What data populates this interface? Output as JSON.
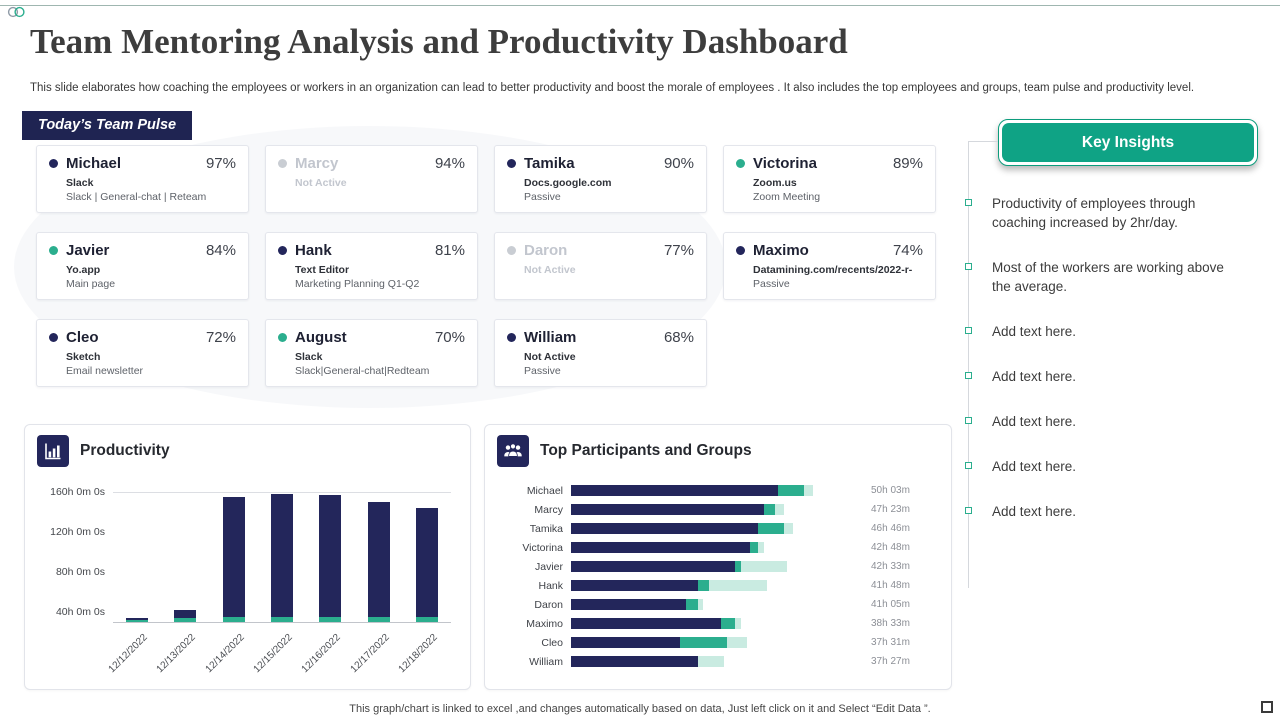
{
  "slide": {
    "title": "Team Mentoring Analysis and Productivity Dashboard",
    "subtitle": "This slide elaborates how coaching the employees or workers in an organization can lead to  better productivity  and boost the morale of employees . It also includes the top employees and groups, team pulse and productivity level.",
    "footer": "This graph/chart is linked to excel ,and changes automatically based on data, Just left click on it and Select “Edit Data ”."
  },
  "team_pulse": {
    "heading": "Today’s Team Pulse",
    "members": [
      {
        "name": "Michael",
        "percent": "97%",
        "app": "Slack",
        "detail": "Slack | General-chat | Reteam",
        "dot": "#23265b",
        "inactive": false
      },
      {
        "name": "Marcy",
        "percent": "94%",
        "app": "Not Active",
        "detail": "",
        "dot": "#c9cdd3",
        "inactive": true
      },
      {
        "name": "Tamika",
        "percent": "90%",
        "app": "Docs.google.com",
        "detail": "Passive",
        "dot": "#23265b",
        "inactive": false
      },
      {
        "name": "Victorina",
        "percent": "89%",
        "app": "Zoom.us",
        "detail": "Zoom Meeting",
        "dot": "#2bae8e",
        "inactive": false
      },
      {
        "name": "Javier",
        "percent": "84%",
        "app": "Yo.app",
        "detail": "Main page",
        "dot": "#2bae8e",
        "inactive": false
      },
      {
        "name": "Hank",
        "percent": "81%",
        "app": "Text Editor",
        "detail": "Marketing Planning Q1-Q2",
        "dot": "#23265b",
        "inactive": false
      },
      {
        "name": "Daron",
        "percent": "77%",
        "app": "Not Active",
        "detail": "",
        "dot": "#c9cdd3",
        "inactive": true
      },
      {
        "name": "Maximo",
        "percent": "74%",
        "app": "Datamining.com/recents/2022-r-",
        "detail": "Passive",
        "dot": "#23265b",
        "inactive": false
      },
      {
        "name": "Cleo",
        "percent": "72%",
        "app": "Sketch",
        "detail": "Email newsletter",
        "dot": "#23265b",
        "inactive": false
      },
      {
        "name": "August",
        "percent": "70%",
        "app": "Slack",
        "detail": "Slack|General-chat|Redteam",
        "dot": "#2bae8e",
        "inactive": false
      },
      {
        "name": "William",
        "percent": "68%",
        "app": "Not Active",
        "detail": "Passive",
        "dot": "#23265b",
        "inactive": false
      }
    ]
  },
  "key_insights": {
    "title": "Key Insights",
    "accent": "#0fa385",
    "items": [
      "Productivity of employees through coaching increased by 2hr/day.",
      "Most of the workers are working above the average.",
      "Add text here.",
      "Add text here.",
      "Add text here.",
      "Add text here.",
      "Add text here."
    ]
  },
  "chart_data": [
    {
      "type": "bar",
      "title": "Productivity",
      "categories": [
        "12/12/2022",
        "12/13/2022",
        "12/14/2022",
        "12/15/2022",
        "12/16/2022",
        "12/17/2022",
        "12/18/2022"
      ],
      "series": [
        {
          "name": "active-time",
          "color": "#2bae8e",
          "values": [
            2,
            4,
            5,
            5,
            5,
            5,
            5
          ]
        },
        {
          "name": "total-time",
          "color": "#23265b",
          "values": [
            32,
            38,
            150,
            153,
            152,
            145,
            139
          ]
        }
      ],
      "totals_hours": [
        34,
        42,
        155,
        158,
        157,
        150,
        144
      ],
      "y_ticks": [
        "40h 0m 0s",
        "80h 0m 0s",
        "120h 0m 0s",
        "160h 0m 0s"
      ],
      "y_tick_hours": [
        40,
        80,
        120,
        160
      ],
      "y_min": 30,
      "y_max": 165,
      "xlabel": "",
      "ylabel": "",
      "legend": "none",
      "grid": "top-line-only"
    },
    {
      "type": "bar",
      "orientation": "horizontal",
      "title": "Top Participants and Groups",
      "categories": [
        "Michael",
        "Marcy",
        "Tamika",
        "Victorina",
        "Javier",
        "Hank",
        "Daron",
        "Maximo",
        "Cleo",
        "William"
      ],
      "value_labels": [
        "50h 03m",
        "47h 23m",
        "46h 46m",
        "42h 48m",
        "42h 33m",
        "41h 48m",
        "41h 05m",
        "38h 33m",
        "37h 31m",
        "37h 27m"
      ],
      "series_colors": [
        "#23265b",
        "#2bae8e",
        "#c9ebe1"
      ],
      "segments_pct": [
        [
          72,
          9,
          3
        ],
        [
          67,
          4,
          3
        ],
        [
          65,
          9,
          3
        ],
        [
          62,
          3,
          2
        ],
        [
          57,
          2,
          16
        ],
        [
          44,
          4,
          20
        ],
        [
          40,
          4,
          2
        ],
        [
          52,
          5,
          2
        ],
        [
          38,
          16,
          7
        ],
        [
          44,
          0,
          9
        ]
      ],
      "legend": "none"
    }
  ]
}
